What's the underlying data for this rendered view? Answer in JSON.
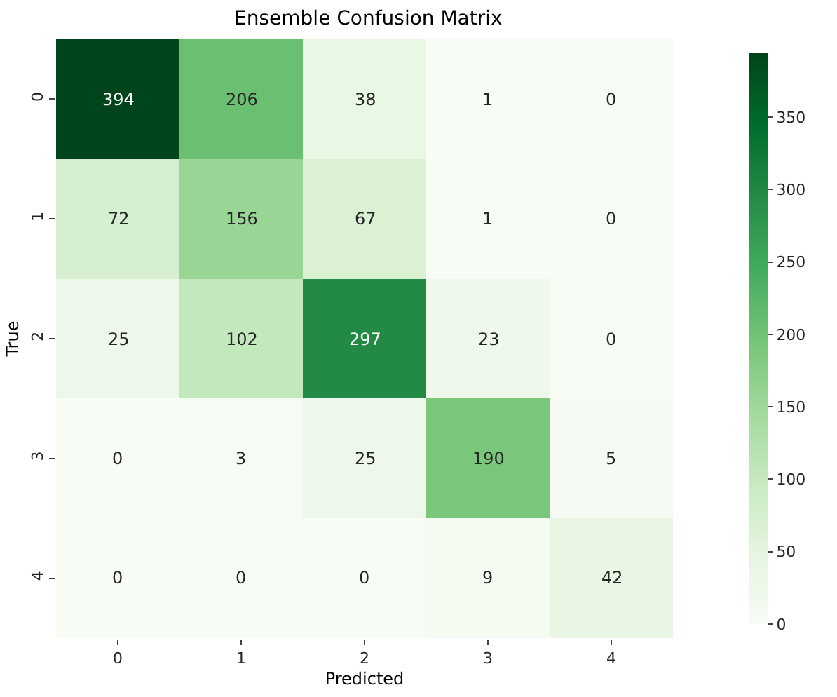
{
  "chart_data": {
    "type": "heatmap",
    "title": "Ensemble Confusion Matrix",
    "xlabel": "Predicted",
    "ylabel": "True",
    "categories": [
      "0",
      "1",
      "2",
      "3",
      "4"
    ],
    "y_categories": [
      "0",
      "1",
      "2",
      "3",
      "4"
    ],
    "cells": [
      [
        394,
        206,
        38,
        1,
        0
      ],
      [
        72,
        156,
        67,
        1,
        0
      ],
      [
        25,
        102,
        297,
        23,
        0
      ],
      [
        0,
        3,
        25,
        190,
        5
      ],
      [
        0,
        0,
        0,
        9,
        42
      ]
    ],
    "clim": [
      0,
      394
    ],
    "cticks": [
      0,
      50,
      100,
      150,
      200,
      250,
      300,
      350
    ],
    "data_labels": true
  }
}
